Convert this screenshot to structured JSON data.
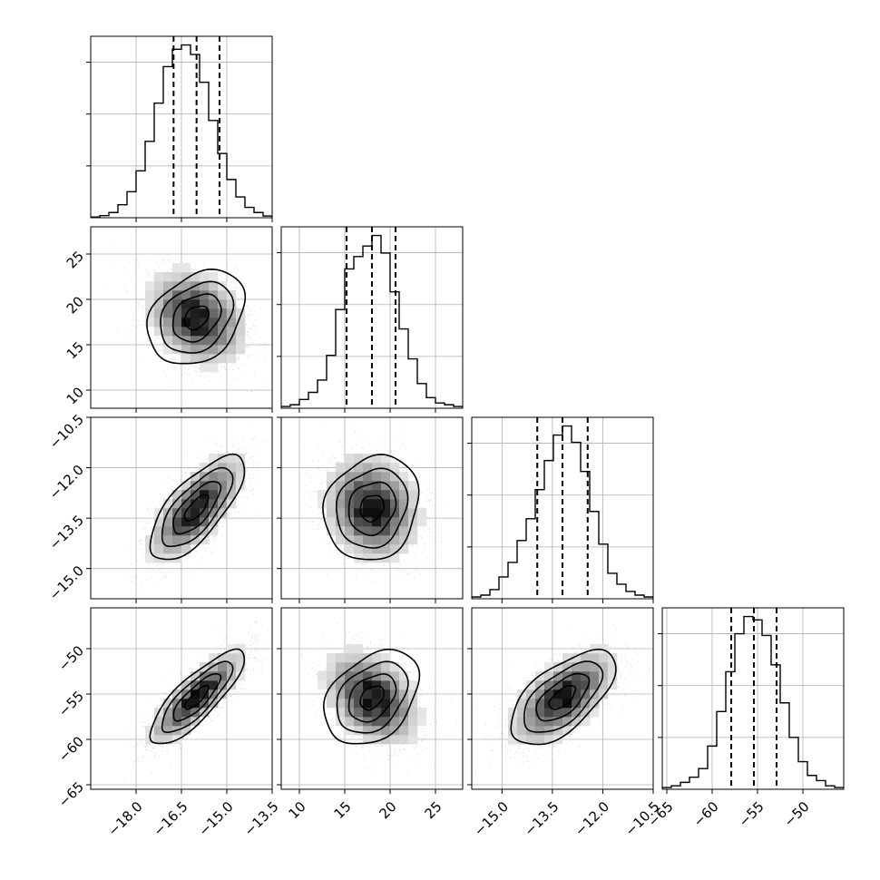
{
  "chart_data": {
    "type": "corner",
    "n_params": 4,
    "params": [
      {
        "index": 0,
        "range": [
          -19.5,
          -13.5
        ],
        "ticks": [
          -18.0,
          -16.5,
          -15.0,
          -13.5
        ],
        "tick_labels": [
          "−18.0",
          "−16.5",
          "−15.0",
          "−13.5"
        ],
        "quantiles": [
          -16.76,
          -16.0,
          -15.24
        ]
      },
      {
        "index": 1,
        "range": [
          8,
          28
        ],
        "ticks": [
          10,
          15,
          20,
          25
        ],
        "tick_labels": [
          "10",
          "15",
          "20",
          "25"
        ],
        "quantiles": [
          15.2,
          18.0,
          20.6
        ]
      },
      {
        "index": 2,
        "range": [
          -15.9,
          -10.5
        ],
        "ticks": [
          -15.0,
          -13.5,
          -12.0,
          -10.5
        ],
        "tick_labels": [
          "−15.0",
          "−13.5",
          "−12.0",
          "−10.5"
        ],
        "quantiles": [
          -13.95,
          -13.2,
          -12.45
        ]
      },
      {
        "index": 3,
        "range": [
          -65.5,
          -45.5
        ],
        "ticks": [
          -65,
          -60,
          -55,
          -50
        ],
        "tick_labels": [
          "−65",
          "−60",
          "−55",
          "−50"
        ],
        "quantiles": [
          -57.9,
          -55.4,
          -52.9
        ]
      }
    ],
    "histograms": [
      {
        "param": 0,
        "counts": [
          0.004,
          0.012,
          0.03,
          0.075,
          0.15,
          0.27,
          0.44,
          0.66,
          0.87,
          0.97,
          0.995,
          0.94,
          0.78,
          0.56,
          0.37,
          0.22,
          0.12,
          0.06,
          0.03,
          0.01
        ]
      },
      {
        "param": 1,
        "counts": [
          0.01,
          0.02,
          0.05,
          0.09,
          0.16,
          0.3,
          0.56,
          0.79,
          0.86,
          0.92,
          0.98,
          0.88,
          0.66,
          0.45,
          0.28,
          0.14,
          0.06,
          0.03,
          0.02,
          0.01
        ]
      },
      {
        "param": 2,
        "counts": [
          0.01,
          0.02,
          0.05,
          0.12,
          0.2,
          0.32,
          0.44,
          0.6,
          0.76,
          0.9,
          0.95,
          0.86,
          0.7,
          0.48,
          0.3,
          0.14,
          0.08,
          0.04,
          0.02,
          0.01
        ]
      },
      {
        "param": 3,
        "counts": [
          0.01,
          0.02,
          0.04,
          0.07,
          0.12,
          0.25,
          0.45,
          0.68,
          0.9,
          1.0,
          0.98,
          0.89,
          0.72,
          0.5,
          0.3,
          0.16,
          0.08,
          0.05,
          0.02,
          0.01
        ]
      }
    ],
    "pairs": [
      {
        "x": 0,
        "y": 1,
        "center": [
          -16.0,
          18.0
        ],
        "sigma": [
          0.8,
          2.6
        ],
        "rho": -0.3
      },
      {
        "x": 0,
        "y": 2,
        "center": [
          -16.0,
          -13.2
        ],
        "sigma": [
          0.78,
          0.78
        ],
        "rho": 0.72
      },
      {
        "x": 1,
        "y": 2,
        "center": [
          18.0,
          -13.2
        ],
        "sigma": [
          2.6,
          0.78
        ],
        "rho": -0.15
      },
      {
        "x": 0,
        "y": 3,
        "center": [
          -16.0,
          -55.4
        ],
        "sigma": [
          0.78,
          2.6
        ],
        "rho": 0.82
      },
      {
        "x": 1,
        "y": 3,
        "center": [
          18.0,
          -55.4
        ],
        "sigma": [
          2.6,
          2.6
        ],
        "rho": -0.35
      },
      {
        "x": 2,
        "y": 3,
        "center": [
          -13.2,
          -55.4
        ],
        "sigma": [
          0.78,
          2.6
        ],
        "rho": 0.62
      }
    ],
    "contour_levels_sigma": [
      0.5,
      1.0,
      1.5,
      2.0
    ],
    "grid": true,
    "colors": {
      "hist_line": "#000000",
      "grid": "#b0b0b0",
      "scatter": "#9a9a9a",
      "density": "#000000",
      "contour": "#000000"
    }
  }
}
